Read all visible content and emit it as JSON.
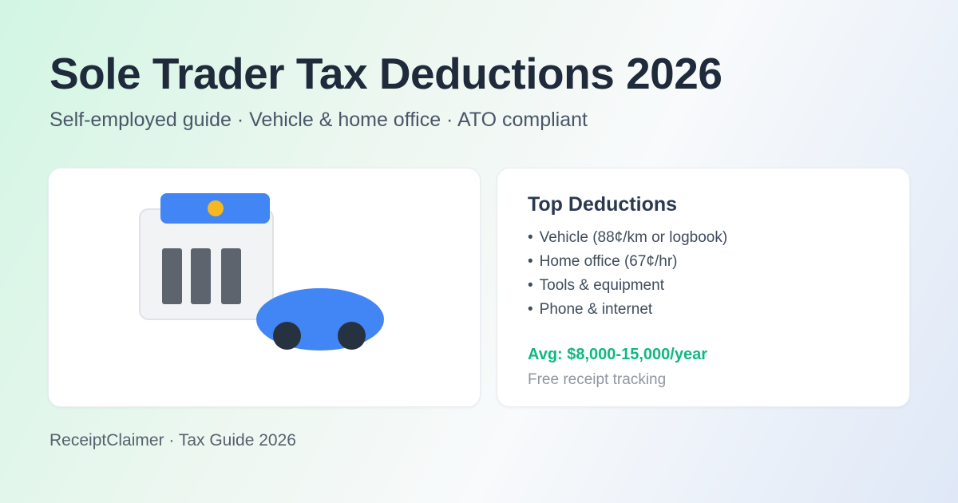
{
  "page": {
    "title": "Sole Trader Tax Deductions 2026",
    "subtitle": "Self-employed guide · Vehicle & home office · ATO compliant",
    "footer": "ReceiptClaimer · Tax Guide 2026"
  },
  "deductions_card": {
    "heading": "Top Deductions",
    "bullet_char": "•",
    "items": [
      "Vehicle (88¢/km or logbook)",
      "Home office (67¢/hr)",
      "Tools & equipment",
      "Phone & internet"
    ],
    "average": "Avg: $8,000-15,000/year",
    "note": "Free receipt tracking"
  },
  "illustration": {
    "description": "receipt building with blue header, yellow dot, three gray bars, and blue car with dark wheels"
  },
  "colors": {
    "accent_blue": "#4285f4",
    "accent_yellow": "#f5b821",
    "bars_gray": "#5d646e",
    "wheel_dark": "#263240",
    "success_green": "#10b981",
    "title_navy": "#1f2a3a",
    "background_mint": "#d2f6e3",
    "background_blue": "#dfe8f7"
  }
}
